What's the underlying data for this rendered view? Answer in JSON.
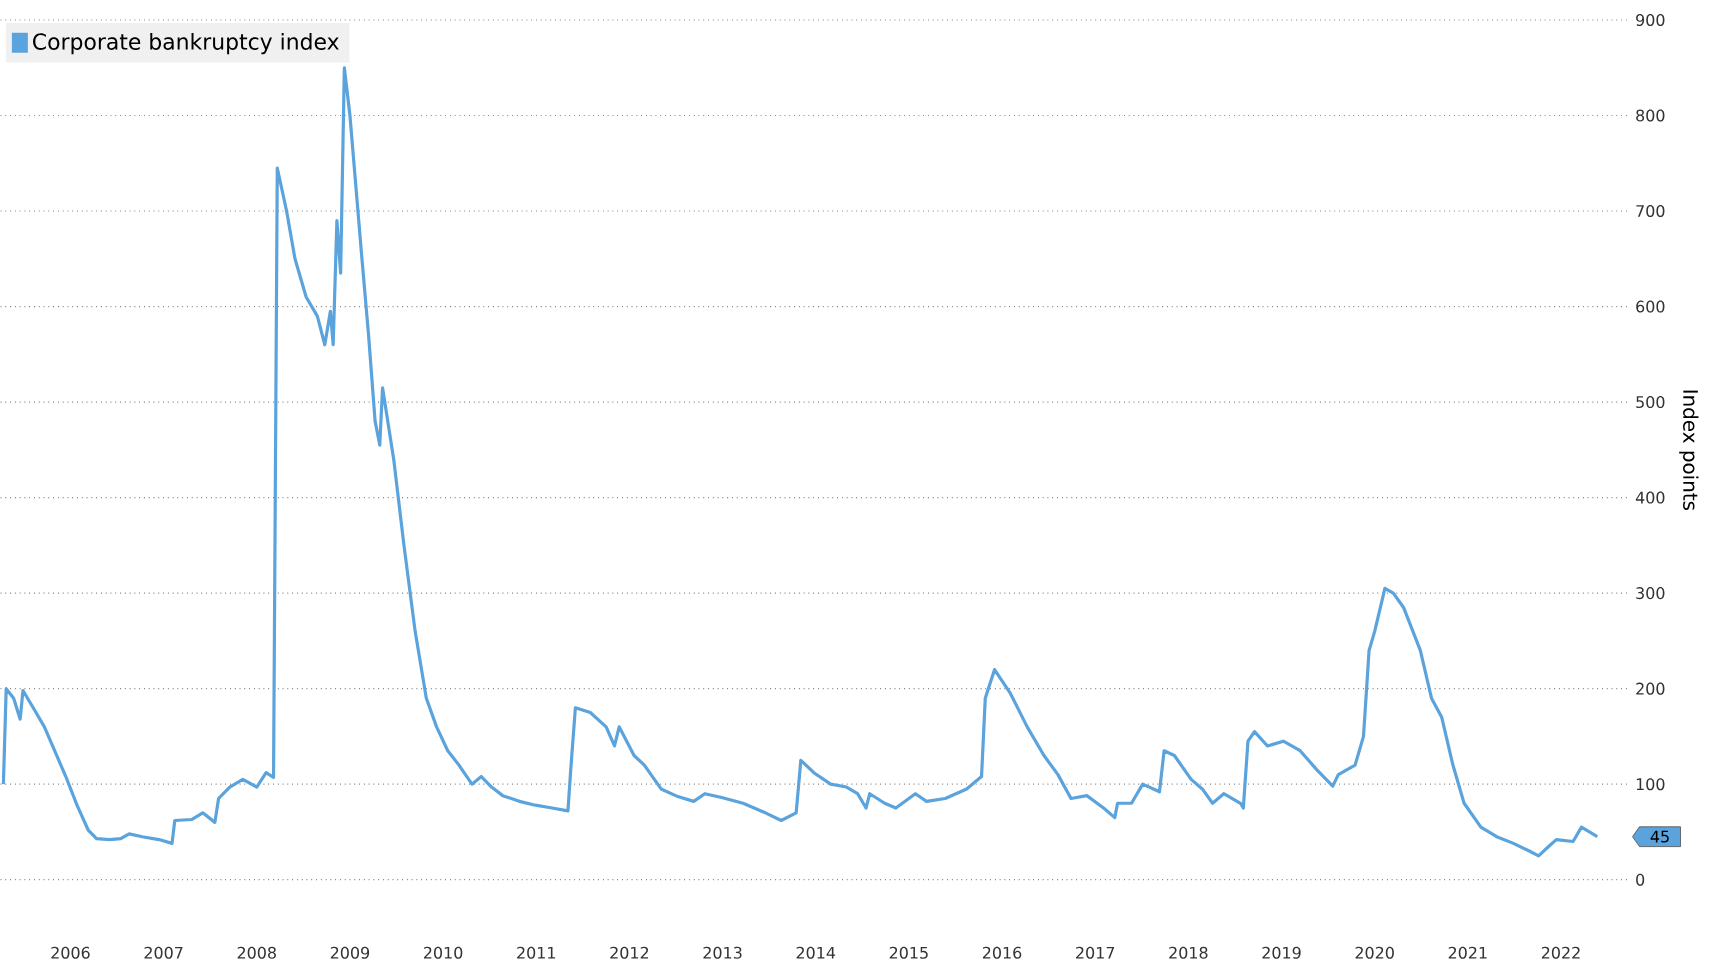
{
  "chart_data": {
    "type": "line",
    "ylabel": "Index points",
    "legend": "top left",
    "grid": "y",
    "marker": "none",
    "line_style": "solid",
    "xlim": [
      2005.75,
      2023.22
    ],
    "ylim": [
      0,
      900
    ],
    "xticks": [
      {
        "value": 2006.5,
        "label": "2006"
      },
      {
        "value": 2007.5,
        "label": "2007"
      },
      {
        "value": 2008.5,
        "label": "2008"
      },
      {
        "value": 2009.5,
        "label": "2009"
      },
      {
        "value": 2010.5,
        "label": "2010"
      },
      {
        "value": 2011.5,
        "label": "2011"
      },
      {
        "value": 2012.5,
        "label": "2012"
      },
      {
        "value": 2013.5,
        "label": "2013"
      },
      {
        "value": 2014.5,
        "label": "2014"
      },
      {
        "value": 2015.5,
        "label": "2015"
      },
      {
        "value": 2016.5,
        "label": "2016"
      },
      {
        "value": 2017.5,
        "label": "2017"
      },
      {
        "value": 2018.5,
        "label": "2018"
      },
      {
        "value": 2019.5,
        "label": "2019"
      },
      {
        "value": 2020.5,
        "label": "2020"
      },
      {
        "value": 2021.5,
        "label": "2021"
      },
      {
        "value": 2022.5,
        "label": "2022"
      }
    ],
    "yticks": [
      0,
      100,
      200,
      300,
      400,
      500,
      600,
      700,
      800,
      900
    ],
    "annotations": [
      "45"
    ],
    "x": [
      2005.78,
      2005.81,
      2005.89,
      2005.96,
      2005.99,
      2006.1,
      2006.22,
      2006.33,
      2006.45,
      2006.57,
      2006.69,
      2006.78,
      2006.92,
      2007.04,
      2007.13,
      2007.27,
      2007.45,
      2007.59,
      2007.62,
      2007.8,
      2007.92,
      2008.05,
      2008.09,
      2008.21,
      2008.35,
      2008.5,
      2008.6,
      2008.68,
      2008.72,
      2008.82,
      2008.91,
      2009.03,
      2009.15,
      2009.23,
      2009.29,
      2009.32,
      2009.36,
      2009.4,
      2009.44,
      2009.5,
      2009.62,
      2009.7,
      2009.77,
      2009.82,
      2009.85,
      2009.97,
      2010.08,
      2010.2,
      2010.32,
      2010.43,
      2010.55,
      2010.67,
      2010.81,
      2010.91,
      2011.02,
      2011.14,
      2011.32,
      2011.49,
      2011.67,
      2011.84,
      2011.87,
      2011.92,
      2012.08,
      2012.25,
      2012.34,
      2012.39,
      2012.55,
      2012.66,
      2012.84,
      2013.02,
      2013.19,
      2013.31,
      2013.49,
      2013.72,
      2013.96,
      2014.13,
      2014.29,
      2014.34,
      2014.48,
      2014.66,
      2014.83,
      2014.95,
      2015.04,
      2015.08,
      2015.24,
      2015.36,
      2015.57,
      2015.69,
      2015.89,
      2016.12,
      2016.28,
      2016.32,
      2016.42,
      2016.59,
      2016.77,
      2016.95,
      2017.1,
      2017.24,
      2017.41,
      2017.59,
      2017.71,
      2017.74,
      2017.89,
      2018.01,
      2018.19,
      2018.24,
      2018.35,
      2018.53,
      2018.65,
      2018.76,
      2018.88,
      2019.06,
      2019.09,
      2019.14,
      2019.21,
      2019.35,
      2019.52,
      2019.7,
      2019.88,
      2020.05,
      2020.11,
      2020.29,
      2020.38,
      2020.44,
      2020.5,
      2020.61,
      2020.7,
      2020.81,
      2020.99,
      2021.11,
      2021.22,
      2021.34,
      2021.46,
      2021.64,
      2021.81,
      2021.99,
      2022.16,
      2022.26,
      2022.37,
      2022.45,
      2022.63,
      2022.72,
      2022.89
    ],
    "series": [
      {
        "name": "Corporate bankruptcy index",
        "color": "#5ba3dc",
        "values": [
          100,
          200,
          190,
          168,
          198,
          180,
          160,
          135,
          108,
          78,
          52,
          43,
          42,
          43,
          48,
          45,
          42,
          38,
          62,
          63,
          70,
          60,
          85,
          97,
          105,
          97,
          112,
          107,
          745,
          700,
          650,
          610,
          590,
          560,
          595,
          560,
          690,
          635,
          850,
          800,
          660,
          570,
          480,
          455,
          515,
          440,
          350,
          260,
          190,
          160,
          135,
          120,
          100,
          108,
          97,
          88,
          82,
          78,
          75,
          72,
          115,
          180,
          175,
          160,
          140,
          160,
          130,
          120,
          95,
          87,
          82,
          90,
          86,
          80,
          70,
          62,
          70,
          125,
          112,
          100,
          97,
          90,
          75,
          90,
          80,
          75,
          90,
          82,
          85,
          95,
          108,
          190,
          220,
          195,
          160,
          130,
          110,
          85,
          88,
          75,
          65,
          80,
          80,
          100,
          92,
          135,
          130,
          105,
          95,
          80,
          90,
          80,
          75,
          145,
          155,
          140,
          145,
          135,
          115,
          98,
          110,
          120,
          150,
          240,
          260,
          305,
          300,
          285,
          240,
          190,
          170,
          120,
          80,
          55,
          45,
          38,
          30,
          25,
          35,
          42,
          40,
          55,
          45
        ]
      }
    ]
  }
}
